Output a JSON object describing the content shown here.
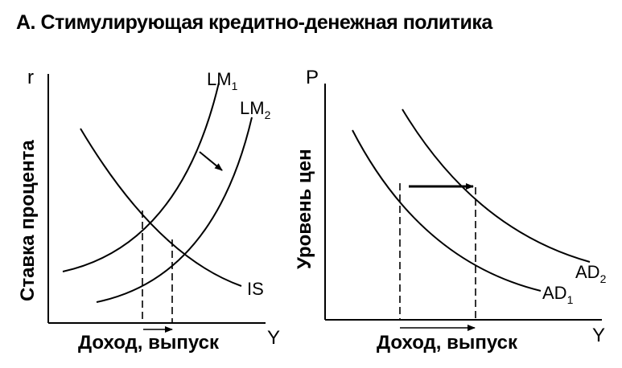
{
  "title": "А. Стимулирующая кредитно-денежная политика",
  "left_panel": {
    "y_axis_symbol": "r",
    "y_axis_label": "Ставка процента",
    "x_axis_symbol": "Y",
    "x_axis_label": "Доход, выпуск",
    "curves": {
      "lm1": {
        "base": "LM",
        "sub": "1"
      },
      "lm2": {
        "base": "LM",
        "sub": "2"
      },
      "is": {
        "base": "IS",
        "sub": ""
      }
    }
  },
  "right_panel": {
    "y_axis_symbol": "P",
    "y_axis_label": "Уровень цен",
    "x_axis_symbol": "Y",
    "x_axis_label": "Доход, выпуск",
    "curves": {
      "ad1": {
        "base": "AD",
        "sub": "1"
      },
      "ad2": {
        "base": "AD",
        "sub": "2"
      }
    }
  }
}
